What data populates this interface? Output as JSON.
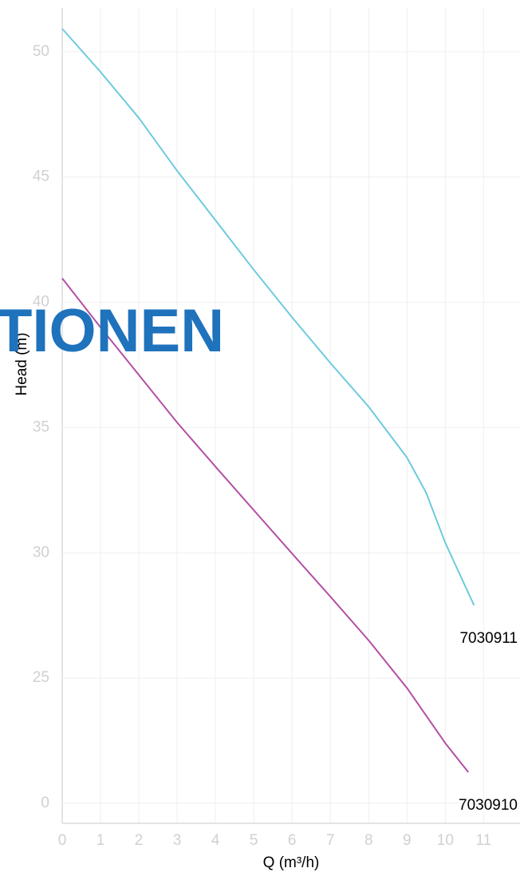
{
  "chart_data": {
    "type": "line",
    "watermark": "TIONEN",
    "xlabel": "Q (m³/h)",
    "ylabel": "Head (m)",
    "xlim": [
      0,
      11.95
    ],
    "xticks": [
      0,
      1,
      2,
      3,
      4,
      5,
      6,
      7,
      8,
      9,
      10,
      11
    ],
    "ylim": [
      19.2,
      51.75
    ],
    "yticks": [
      {
        "value": 20,
        "label": "0"
      },
      25,
      30,
      35,
      40,
      45,
      50
    ],
    "grid": true,
    "series": [
      {
        "name": "7030911",
        "color": "#6dcbdc",
        "x": [
          0,
          1,
          2,
          3,
          4,
          5,
          6,
          7,
          8,
          9,
          9.5,
          10,
          10.75
        ],
        "values": [
          50.92,
          49.2,
          47.36,
          45.25,
          43.28,
          41.3,
          39.4,
          37.58,
          35.83,
          33.8,
          32.4,
          30.4,
          27.9
        ]
      },
      {
        "name": "7030910",
        "color": "#b44fa3",
        "x": [
          0,
          1,
          2,
          3,
          4,
          5,
          6,
          7,
          8,
          9,
          9.5,
          10,
          10.6
        ],
        "values": [
          40.96,
          39.0,
          37.1,
          35.2,
          33.44,
          31.7,
          29.97,
          28.25,
          26.5,
          24.6,
          23.5,
          22.4,
          21.24
        ]
      }
    ]
  }
}
